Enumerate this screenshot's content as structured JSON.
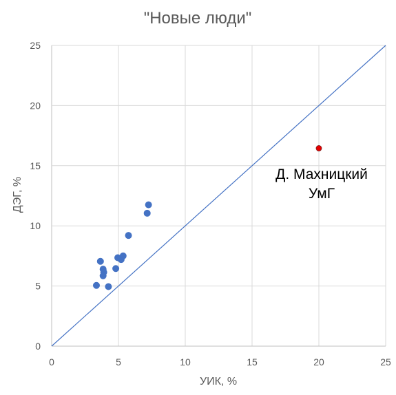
{
  "chart_data": {
    "type": "scatter",
    "title": "\"Новые люди\"",
    "xlabel": "УИК, %",
    "ylabel": "ДЭГ, %",
    "xlim": [
      0,
      25
    ],
    "ylim": [
      0,
      25
    ],
    "x_ticks": [
      "0",
      "5",
      "10",
      "15",
      "20",
      "25"
    ],
    "y_ticks": [
      "0",
      "5",
      "10",
      "15",
      "20",
      "25"
    ],
    "grid": "vertical and horizontal major gridlines",
    "reference_line": {
      "type": "y=x",
      "from": [
        0,
        0
      ],
      "to": [
        25,
        25
      ]
    },
    "colors": {
      "points": "#4472c4",
      "highlight": "#e60000",
      "line": "#4472c4",
      "grid": "#d9d9d9"
    },
    "series": [
      {
        "points": [
          {
            "x": 3.35,
            "y": 5.05
          },
          {
            "x": 4.25,
            "y": 4.95
          },
          {
            "x": 3.85,
            "y": 5.85
          },
          {
            "x": 3.9,
            "y": 6.15
          },
          {
            "x": 3.85,
            "y": 6.4
          },
          {
            "x": 3.65,
            "y": 7.05
          },
          {
            "x": 4.8,
            "y": 6.45
          },
          {
            "x": 4.95,
            "y": 7.35
          },
          {
            "x": 5.2,
            "y": 7.2
          },
          {
            "x": 5.35,
            "y": 7.5
          },
          {
            "x": 5.75,
            "y": 9.2
          },
          {
            "x": 7.15,
            "y": 11.05
          },
          {
            "x": 7.25,
            "y": 11.75
          }
        ]
      }
    ],
    "highlight_point": {
      "x": 20.0,
      "y": 16.45,
      "label_line1": "Д. Махницкий",
      "label_line2": "УмГ"
    }
  }
}
